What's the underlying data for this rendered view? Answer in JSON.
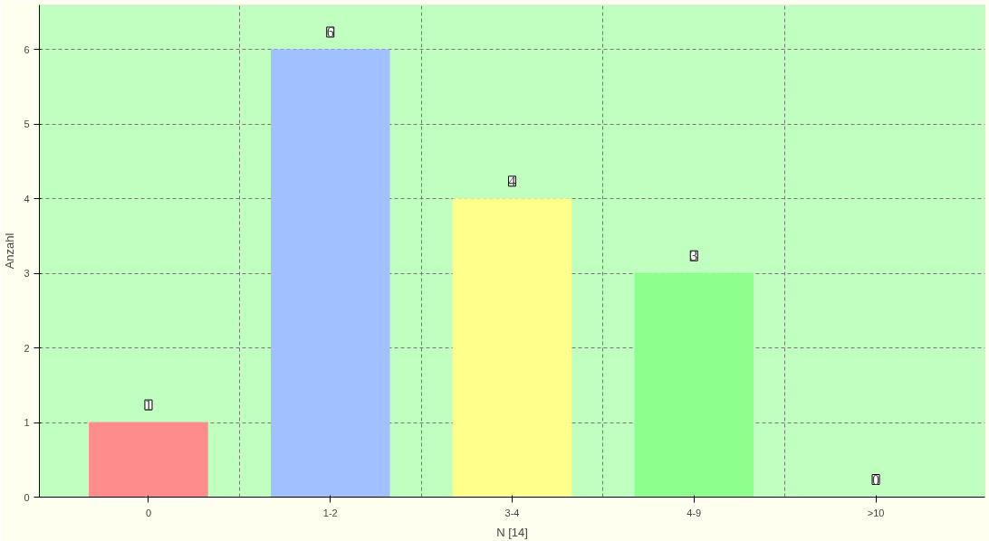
{
  "chart_data": {
    "type": "bar",
    "xlabel": "N [14]",
    "ylabel": "Anzahl",
    "categories": [
      "0",
      "1-2",
      "3-4",
      "4-9",
      ">10"
    ],
    "values": [
      1,
      6,
      4,
      3,
      0
    ],
    "colors": [
      "#ff8c8c",
      "#a0c0ff",
      "#ffff8c",
      "#8cff8c",
      "#4fbfbf"
    ],
    "ylim": [
      0,
      6.6
    ],
    "yticks": [
      0,
      1,
      2,
      3,
      4,
      5,
      6
    ],
    "grid": true,
    "line_style": "dashed",
    "data_labels": true
  }
}
